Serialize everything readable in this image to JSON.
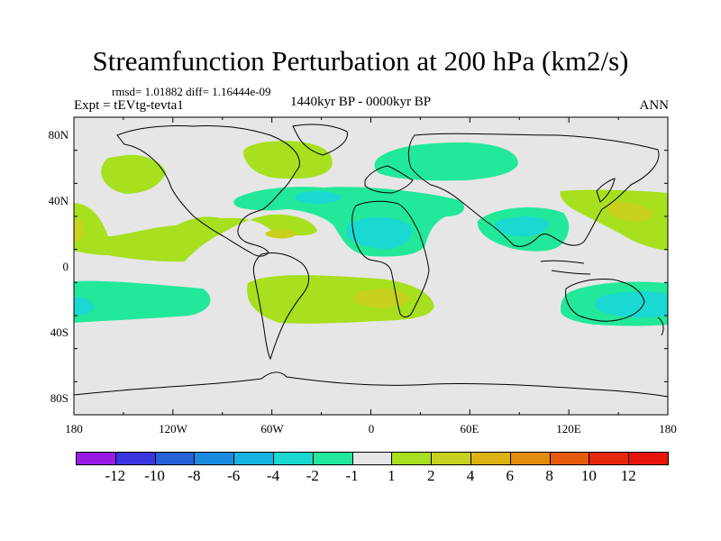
{
  "title": "Streamfunction Perturbation at 200 hPa (km2/s)",
  "stats": "rmsd= 1.01882 diff= 1.16444e-09",
  "experiment": "Expt = tEVtg-tevta1",
  "period": "1440kyr BP - 0000kyr BP",
  "season": "ANN",
  "lat_labels": [
    "80N",
    "40N",
    "0",
    "40S",
    "80S"
  ],
  "lon_labels": [
    "180",
    "120W",
    "60W",
    "0",
    "60E",
    "120E",
    "180"
  ],
  "colorbar": {
    "labels": [
      "-12",
      "-10",
      "-8",
      "-6",
      "-4",
      "-2",
      "-1",
      "1",
      "2",
      "4",
      "6",
      "8",
      "10",
      "12"
    ],
    "colors": [
      "#9a1ae6",
      "#3a35e0",
      "#2560d8",
      "#1a8ce0",
      "#16b4e0",
      "#1ad8d2",
      "#22e89a",
      "#e6e6e6",
      "#a6e01e",
      "#c8d21e",
      "#dcb412",
      "#e68c0c",
      "#e65a0c",
      "#e62808",
      "#e6140a"
    ]
  },
  "map_colors": {
    "ocean": "#e6e6e6",
    "coast": "#000000",
    "neg1": "#22e89a",
    "neg2": "#1ad8d2",
    "pos1": "#a6e01e",
    "pos2": "#c8d21e"
  }
}
